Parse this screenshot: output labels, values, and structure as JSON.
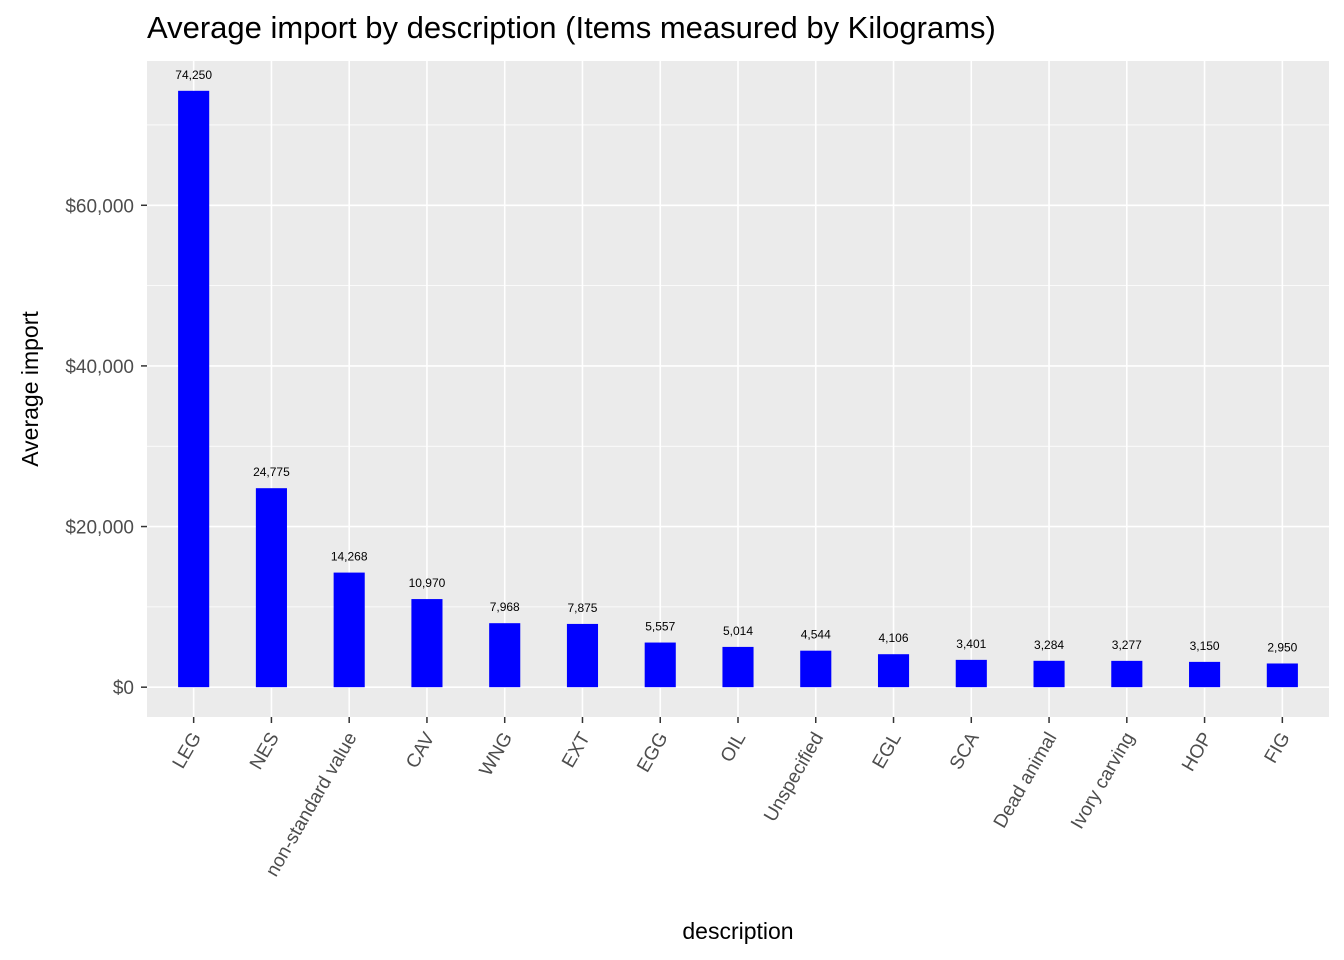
{
  "chart_data": {
    "type": "bar",
    "title": "Average import by description (Items measured by Kilograms)",
    "xlabel": "description",
    "ylabel": "Average import",
    "categories": [
      "LEG",
      "NES",
      "non-standard value",
      "CAV",
      "WNG",
      "EXT",
      "EGG",
      "OIL",
      "Unspecified",
      "EGL",
      "SCA",
      "Dead animal",
      "Ivory carving",
      "HOP",
      "FIG"
    ],
    "values": [
      74250,
      24775,
      14268,
      10970,
      7968,
      7875,
      5557,
      5014,
      4544,
      4106,
      3401,
      3284,
      3277,
      3150,
      2950
    ],
    "data_labels": [
      "74,250",
      "24,775",
      "14,268",
      "10,970",
      "7,968",
      "7,875",
      "5,557",
      "5,014",
      "4,544",
      "4,106",
      "3,401",
      "3,284",
      "3,277",
      "3,150",
      "2,950"
    ],
    "y_ticks": [
      0,
      20000,
      40000,
      60000
    ],
    "y_tick_labels": [
      "$0",
      "$20,000",
      "$40,000",
      "$60,000"
    ],
    "ylim": [
      -3712.5,
      77962.5
    ],
    "x_tick_rotation_deg": -60,
    "grid": true,
    "legend": "none",
    "colors": {
      "bar": "#0000FF",
      "panel": "#EBEBEB",
      "grid": "#FFFFFF"
    }
  }
}
